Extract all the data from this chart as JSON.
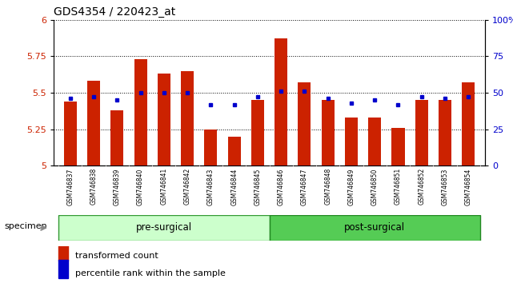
{
  "title": "GDS4354 / 220423_at",
  "samples": [
    "GSM746837",
    "GSM746838",
    "GSM746839",
    "GSM746840",
    "GSM746841",
    "GSM746842",
    "GSM746843",
    "GSM746844",
    "GSM746845",
    "GSM746846",
    "GSM746847",
    "GSM746848",
    "GSM746849",
    "GSM746850",
    "GSM746851",
    "GSM746852",
    "GSM746853",
    "GSM746854"
  ],
  "bar_values": [
    5.44,
    5.58,
    5.38,
    5.73,
    5.63,
    5.65,
    5.25,
    5.2,
    5.45,
    5.87,
    5.57,
    5.45,
    5.33,
    5.33,
    5.26,
    5.45,
    5.45,
    5.57
  ],
  "blue_values": [
    5.46,
    5.47,
    5.45,
    5.5,
    5.5,
    5.5,
    5.42,
    5.42,
    5.47,
    5.51,
    5.51,
    5.46,
    5.43,
    5.45,
    5.42,
    5.47,
    5.46,
    5.47
  ],
  "ymin": 5.0,
  "ymax": 6.0,
  "yticks": [
    5.0,
    5.25,
    5.5,
    5.75,
    6.0
  ],
  "right_ytick_vals": [
    0,
    25,
    50,
    75,
    100
  ],
  "bar_color": "#cc2200",
  "blue_color": "#0000cc",
  "pre_surgical_count": 9,
  "pre_label": "pre-surgical",
  "post_label": "post-surgical",
  "specimen_label": "specimen",
  "legend_bar": "transformed count",
  "legend_blue": "percentile rank within the sample",
  "pre_color": "#ccffcc",
  "post_color": "#55cc55",
  "bar_width": 0.55,
  "baseline": 5.0,
  "xtick_bg": "#c8c8c8",
  "grid_color": "#000000",
  "spine_color": "#000000"
}
